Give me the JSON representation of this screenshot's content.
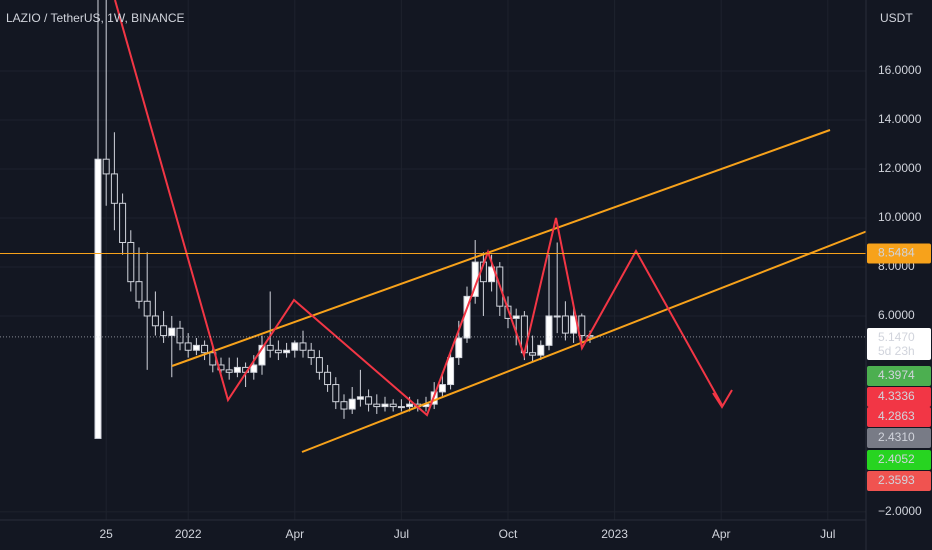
{
  "chart_data": {
    "type": "candlestick",
    "title": "LAZIO / TetherUS, 1W, BINANCE",
    "axis_unit": "USDT",
    "open": [
      1.0,
      12.4,
      11.8,
      10.6,
      9.0,
      7.4,
      6.6,
      6.0,
      5.6,
      5.2,
      5.5,
      4.9,
      4.6,
      4.8,
      4.5,
      4.0,
      3.8,
      3.7,
      3.9,
      3.7,
      4.0,
      4.8,
      4.6,
      4.5,
      4.6,
      4.9,
      4.6,
      4.3,
      3.7,
      3.2,
      2.5,
      2.2,
      2.6,
      2.7,
      2.4,
      2.3,
      2.4,
      2.3,
      2.3,
      2.4,
      2.3,
      2.4,
      2.9,
      3.2,
      4.3,
      5.1,
      6.8,
      8.2,
      7.4,
      8.0,
      6.4,
      5.9,
      6.0,
      4.5,
      4.4,
      4.8,
      6.0,
      6.0,
      5.3,
      6.0,
      5.2
    ],
    "high": [
      19.0,
      19.0,
      13.5,
      11.0,
      9.5,
      8.8,
      8.6,
      7.0,
      6.2,
      6.0,
      5.8,
      5.3,
      5.1,
      5.0,
      4.8,
      4.3,
      4.3,
      4.3,
      4.1,
      4.4,
      5.2,
      7.0,
      5.0,
      4.9,
      5.0,
      5.4,
      4.9,
      4.6,
      4.0,
      3.5,
      2.8,
      3.1,
      3.8,
      3.0,
      2.8,
      2.7,
      2.6,
      2.6,
      2.7,
      2.6,
      2.7,
      3.3,
      3.7,
      4.6,
      5.8,
      7.2,
      9.1,
      8.6,
      8.5,
      8.2,
      6.8,
      6.3,
      6.2,
      5.2,
      5.0,
      8.5,
      9.0,
      6.6,
      6.4,
      6.1,
      5.4
    ],
    "low": [
      1.0,
      10.5,
      9.5,
      8.5,
      7.0,
      6.3,
      3.8,
      5.2,
      4.9,
      3.5,
      4.6,
      4.3,
      4.4,
      4.2,
      3.7,
      3.5,
      3.4,
      3.5,
      3.1,
      3.4,
      3.6,
      4.3,
      4.2,
      4.3,
      4.3,
      4.3,
      4.0,
      3.4,
      2.9,
      2.2,
      1.8,
      2.0,
      2.3,
      2.1,
      2.0,
      2.1,
      2.1,
      2.1,
      2.1,
      2.1,
      2.1,
      2.2,
      2.7,
      3.0,
      4.0,
      4.9,
      6.5,
      6.0,
      7.0,
      6.0,
      5.5,
      4.8,
      4.2,
      4.1,
      4.2,
      4.6,
      5.3,
      5.0,
      4.9,
      4.9,
      4.9
    ],
    "close": [
      12.4,
      11.8,
      10.6,
      9.0,
      7.4,
      6.6,
      6.0,
      5.6,
      5.2,
      5.5,
      4.9,
      4.6,
      4.8,
      4.5,
      4.0,
      3.8,
      3.7,
      3.9,
      3.7,
      4.0,
      4.8,
      4.6,
      4.5,
      4.6,
      4.9,
      4.6,
      4.3,
      3.7,
      3.2,
      2.5,
      2.2,
      2.6,
      2.7,
      2.4,
      2.3,
      2.4,
      2.3,
      2.3,
      2.4,
      2.3,
      2.4,
      2.9,
      3.2,
      4.3,
      5.1,
      6.8,
      8.2,
      7.4,
      8.0,
      6.4,
      5.9,
      6.0,
      4.5,
      4.4,
      4.8,
      6.0,
      6.0,
      5.3,
      6.0,
      5.2,
      5.147
    ],
    "up_color": "#ffffff",
    "down_color": "#131722",
    "xlim": [
      -11.95,
      93.66
    ],
    "xticks": [
      {
        "value": 1,
        "label": "25"
      },
      {
        "value": 11,
        "label": "2022"
      },
      {
        "value": 24,
        "label": "Apr"
      },
      {
        "value": 37,
        "label": "Jul"
      },
      {
        "value": 50,
        "label": "Oct"
      },
      {
        "value": 63,
        "label": "2023"
      },
      {
        "value": 76,
        "label": "Apr"
      },
      {
        "value": 89,
        "label": "Jul"
      }
    ],
    "ylim": [
      -2.33,
      18.9
    ],
    "yticks": [
      {
        "value": -2,
        "label": "−2.0000"
      },
      {
        "value": 6,
        "label": "6.0000"
      },
      {
        "value": 8,
        "label": "8.0000"
      },
      {
        "value": 10,
        "label": "10.0000"
      },
      {
        "value": 12,
        "label": "12.0000"
      },
      {
        "value": 14,
        "label": "14.0000"
      },
      {
        "value": 16,
        "label": "16.0000"
      }
    ],
    "grid": true,
    "price_tags": [
      {
        "value": 8.5484,
        "label": "8.5484",
        "color": "#f7a21b",
        "text_color": "#131722",
        "line": true
      },
      {
        "value": 5.147,
        "label": "5.1470",
        "color": "#ffffff",
        "text_color": "#131722",
        "countdown": "5d 23h"
      },
      {
        "value": 4.3974,
        "label": "4.3974",
        "color": "#4caf50",
        "text_color": "#ffffff"
      },
      {
        "value": 4.3336,
        "label": "4.3336",
        "color": "#f23645",
        "text_color": "#ffffff"
      },
      {
        "value": 4.2863,
        "label": "4.2863",
        "color": "#f23645",
        "text_color": "#ffffff"
      },
      {
        "value": 2.431,
        "label": "2.4310",
        "color": "#787b86",
        "text_color": "#ffffff"
      },
      {
        "value": 2.4052,
        "label": "2.4052",
        "color": "#27d421",
        "text_color": "#131722"
      },
      {
        "value": 2.3593,
        "label": "2.3593",
        "color": "#f05350",
        "text_color": "#ffffff"
      }
    ]
  }
}
